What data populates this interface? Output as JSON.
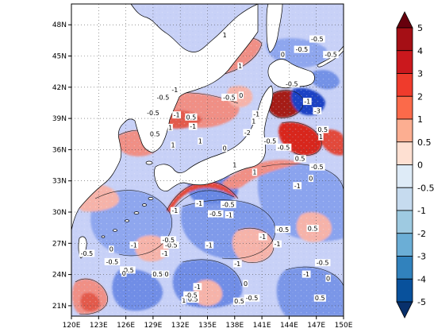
{
  "map": {
    "lon_ticks": [
      "120E",
      "123E",
      "126E",
      "129E",
      "132E",
      "135E",
      "138E",
      "141E",
      "144E",
      "147E",
      "150E"
    ],
    "lat_ticks": [
      "21N",
      "24N",
      "27N",
      "30N",
      "33N",
      "36N",
      "39N",
      "42N",
      "45N",
      "48N"
    ],
    "lon_range": [
      120,
      150
    ],
    "lat_range": [
      20,
      50
    ],
    "gridlines": "dotted",
    "land_color": "#ffffff",
    "coastline_color": "#000000"
  },
  "colorbar": {
    "levels": [
      "5",
      "4",
      "3",
      "2",
      "1",
      "0.5",
      "0",
      "-0.5",
      "-1",
      "-2",
      "-3",
      "-4",
      "-5"
    ],
    "colors": [
      "#67000d",
      "#a50f15",
      "#cb181d",
      "#ef3b2c",
      "#fb6a4a",
      "#fcae91",
      "#fee0d2",
      "#deebf7",
      "#c6dbef",
      "#9ecae1",
      "#6baed6",
      "#3182bd",
      "#08519c",
      "#08306b"
    ],
    "orientation": "vertical",
    "extend": "both"
  },
  "contour_labels": [
    {
      "text": "-0.5",
      "lon": 121.7,
      "lat": 26.0
    },
    {
      "text": "0",
      "lon": 124.4,
      "lat": 26.4
    },
    {
      "text": "-0.5",
      "lon": 124.5,
      "lat": 25.2
    },
    {
      "text": "-0.5",
      "lon": 126.2,
      "lat": 24.4
    },
    {
      "text": "-0.5",
      "lon": 131.0,
      "lat": 26.8
    },
    {
      "text": "-0.5",
      "lon": 130.7,
      "lat": 27.3
    },
    {
      "text": "0",
      "lon": 125.8,
      "lat": 24.1
    },
    {
      "text": "-1",
      "lon": 130.3,
      "lat": 26.0
    },
    {
      "text": "-1",
      "lon": 126.9,
      "lat": 26.8
    },
    {
      "text": "0",
      "lon": 130.5,
      "lat": 24.0
    },
    {
      "text": "0.5",
      "lon": 129.5,
      "lat": 24.0
    },
    {
      "text": "0.5",
      "lon": 133.4,
      "lat": 21.6
    },
    {
      "text": "1",
      "lon": 132.4,
      "lat": 21.5
    },
    {
      "text": "-0.5",
      "lon": 133.2,
      "lat": 22.0
    },
    {
      "text": "-1",
      "lon": 133.9,
      "lat": 22.8
    },
    {
      "text": "0",
      "lon": 139.2,
      "lat": 23.1
    },
    {
      "text": "0.5",
      "lon": 138.5,
      "lat": 21.4
    },
    {
      "text": "-0.5",
      "lon": 139.9,
      "lat": 21.7
    },
    {
      "text": "-1",
      "lon": 138.3,
      "lat": 25.0
    },
    {
      "text": "-1",
      "lon": 135.2,
      "lat": 26.8
    },
    {
      "text": "-1",
      "lon": 141.1,
      "lat": 27.6
    },
    {
      "text": "-0.5",
      "lon": 143.3,
      "lat": 28.3
    },
    {
      "text": "-1",
      "lon": 142.7,
      "lat": 26.9
    },
    {
      "text": "0.5",
      "lon": 146.6,
      "lat": 28.4
    },
    {
      "text": "-0.5",
      "lon": 147.7,
      "lat": 25.1
    },
    {
      "text": "0.5",
      "lon": 147.4,
      "lat": 21.7
    },
    {
      "text": "0",
      "lon": 148.3,
      "lat": 23.6
    },
    {
      "text": "-1",
      "lon": 145.9,
      "lat": 24.0
    },
    {
      "text": "-1",
      "lon": 131.4,
      "lat": 30.1
    },
    {
      "text": "-1",
      "lon": 134.1,
      "lat": 30.8
    },
    {
      "text": "-0.5",
      "lon": 135.9,
      "lat": 29.8
    },
    {
      "text": "-1",
      "lon": 137.4,
      "lat": 29.7
    },
    {
      "text": "-0.5",
      "lon": 137.3,
      "lat": 30.7
    },
    {
      "text": "1",
      "lon": 138.0,
      "lat": 34.5
    },
    {
      "text": "1",
      "lon": 140.2,
      "lat": 33.8
    },
    {
      "text": "-1",
      "lon": 144.9,
      "lat": 32.5
    },
    {
      "text": "0.5",
      "lon": 145.2,
      "lat": 35.1
    },
    {
      "text": "-0.5",
      "lon": 143.4,
      "lat": 36.2
    },
    {
      "text": "0",
      "lon": 146.4,
      "lat": 33.2
    },
    {
      "text": "-0.5",
      "lon": 147.1,
      "lat": 34.3
    },
    {
      "text": "1",
      "lon": 147.5,
      "lat": 37.2
    },
    {
      "text": "-3",
      "lon": 147.1,
      "lat": 39.7
    },
    {
      "text": "-1",
      "lon": 146.0,
      "lat": 40.6
    },
    {
      "text": "-0.5",
      "lon": 144.3,
      "lat": 42.3
    },
    {
      "text": "-0.5",
      "lon": 145.4,
      "lat": 45.6
    },
    {
      "text": "-0.5",
      "lon": 147.1,
      "lat": 46.6
    },
    {
      "text": "-0.5",
      "lon": 148.6,
      "lat": 45.1
    },
    {
      "text": "0.5",
      "lon": 147.7,
      "lat": 37.9
    },
    {
      "text": "-0.5",
      "lon": 141.9,
      "lat": 36.8
    },
    {
      "text": "-1",
      "lon": 131.4,
      "lat": 41.7
    },
    {
      "text": "-0.5",
      "lon": 130.1,
      "lat": 41.0
    },
    {
      "text": "-0.5",
      "lon": 129.0,
      "lat": 39.5
    },
    {
      "text": "-1",
      "lon": 131.6,
      "lat": 39.3
    },
    {
      "text": "0.5",
      "lon": 133.2,
      "lat": 39.1
    },
    {
      "text": "0",
      "lon": 138.7,
      "lat": 41.2
    },
    {
      "text": "-0.5",
      "lon": 137.4,
      "lat": 41.0
    },
    {
      "text": "1",
      "lon": 136.9,
      "lat": 47.0
    },
    {
      "text": "1",
      "lon": 138.6,
      "lat": 44.0
    },
    {
      "text": "0",
      "lon": 143.3,
      "lat": 45.1
    },
    {
      "text": "-1",
      "lon": 140.4,
      "lat": 39.4
    },
    {
      "text": "1",
      "lon": 140.1,
      "lat": 38.7
    },
    {
      "text": "-1",
      "lon": 133.4,
      "lat": 38.2
    },
    {
      "text": "1",
      "lon": 130.9,
      "lat": 38.1
    },
    {
      "text": "-2",
      "lon": 139.4,
      "lat": 37.6
    },
    {
      "text": "0.5",
      "lon": 129.2,
      "lat": 37.5
    },
    {
      "text": "1",
      "lon": 131.2,
      "lat": 36.4
    },
    {
      "text": "0",
      "lon": 136.9,
      "lat": 36.1
    },
    {
      "text": "1",
      "lon": 134.2,
      "lat": 36.8
    }
  ]
}
